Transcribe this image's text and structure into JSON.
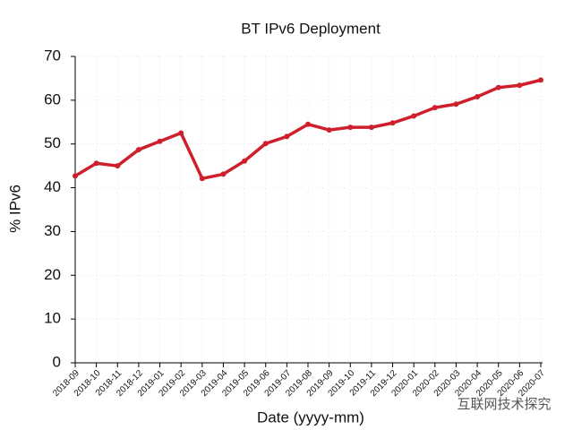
{
  "chart_data": {
    "type": "line",
    "title": "BT IPv6 Deployment",
    "x_label": "Date (yyyy-mm)",
    "y_label": "% IPv6",
    "categories": [
      "2018-09",
      "2018-10",
      "2018-11",
      "2018-12",
      "2019-01",
      "2019-02",
      "2019-03",
      "2019-04",
      "2019-05",
      "2019-06",
      "2019-07",
      "2019-08",
      "2019-09",
      "2019-10",
      "2019-11",
      "2019-12",
      "2020-01",
      "2020-02",
      "2020-03",
      "2020-04",
      "2020-05",
      "2020-06",
      "2020-07"
    ],
    "series": [
      {
        "name": "BT",
        "color": "#cf1f2c",
        "values": [
          42.7,
          45.6,
          45.0,
          48.7,
          50.6,
          52.5,
          42.1,
          43.1,
          46.1,
          50.1,
          51.7,
          54.5,
          53.2,
          53.8,
          53.8,
          54.8,
          56.4,
          58.3,
          59.1,
          60.8,
          62.9,
          63.4,
          64.6
        ]
      }
    ],
    "ylim": [
      0,
      70
    ],
    "yticks": [
      0,
      10,
      20,
      30,
      40,
      50,
      60,
      70
    ],
    "grid": true,
    "watermark": "互联网技术探究"
  }
}
